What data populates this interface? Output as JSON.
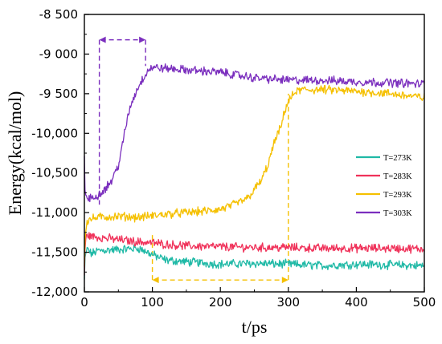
{
  "chart_data": {
    "type": "line",
    "title": "",
    "xlabel": "t/ps",
    "ylabel": "Energy(kcal/mol)",
    "xlim": [
      0,
      500
    ],
    "ylim": [
      -12000,
      -8500
    ],
    "xticks": [
      0,
      100,
      200,
      300,
      400,
      500
    ],
    "xtick_labels": [
      "0",
      "100",
      "200",
      "300",
      "400",
      "500"
    ],
    "yticks": [
      -12000,
      -11500,
      -11000,
      -10500,
      -10000,
      -9500,
      -9000,
      -8500
    ],
    "ytick_labels": [
      "-12,000",
      "-11,500",
      "-11,000",
      "-10,500",
      "-10,000",
      "-9 500",
      "-9 000",
      "-8 500"
    ],
    "grid": false,
    "legend_position": "right-middle",
    "series": [
      {
        "name": "T=273K",
        "color": "#1fb9a6",
        "x": [
          0,
          1,
          3,
          5,
          10,
          20,
          40,
          60,
          80,
          100,
          120,
          150,
          200,
          250,
          300,
          350,
          400,
          450,
          500
        ],
        "values": [
          -11850,
          -11600,
          -11480,
          -11460,
          -11520,
          -11480,
          -11470,
          -11460,
          -11450,
          -11530,
          -11600,
          -11620,
          -11650,
          -11640,
          -11650,
          -11670,
          -11650,
          -11660,
          -11670
        ]
      },
      {
        "name": "T=283K",
        "color": "#f0325a",
        "x": [
          0,
          1,
          3,
          5,
          10,
          20,
          40,
          60,
          80,
          100,
          120,
          150,
          200,
          250,
          300,
          350,
          400,
          450,
          500
        ],
        "values": [
          -11800,
          -11450,
          -11300,
          -11280,
          -11300,
          -11310,
          -11330,
          -11350,
          -11370,
          -11380,
          -11400,
          -11420,
          -11430,
          -11440,
          -11440,
          -11450,
          -11450,
          -11450,
          -11460
        ]
      },
      {
        "name": "T=293K",
        "color": "#f5c000",
        "x": [
          0,
          1,
          3,
          5,
          10,
          20,
          40,
          60,
          80,
          100,
          120,
          150,
          180,
          200,
          220,
          240,
          260,
          270,
          280,
          290,
          295,
          300,
          310,
          320,
          350,
          400,
          450,
          500
        ],
        "values": [
          -11700,
          -11300,
          -11150,
          -11100,
          -11080,
          -11060,
          -11050,
          -11050,
          -11060,
          -11040,
          -11020,
          -11000,
          -10980,
          -10960,
          -10900,
          -10820,
          -10600,
          -10400,
          -10100,
          -9900,
          -9700,
          -9600,
          -9480,
          -9450,
          -9450,
          -9470,
          -9500,
          -9550
        ]
      },
      {
        "name": "T=303K",
        "color": "#7b2fbe",
        "x": [
          0,
          1,
          3,
          5,
          10,
          20,
          30,
          40,
          50,
          55,
          60,
          65,
          70,
          80,
          90,
          95,
          100,
          120,
          150,
          200,
          250,
          300,
          350,
          400,
          450,
          500
        ],
        "values": [
          -10300,
          -10700,
          -10800,
          -10830,
          -10820,
          -10780,
          -10700,
          -10600,
          -10400,
          -10200,
          -9950,
          -9750,
          -9600,
          -9400,
          -9250,
          -9190,
          -9170,
          -9180,
          -9200,
          -9230,
          -9300,
          -9330,
          -9330,
          -9350,
          -9360,
          -9380
        ]
      }
    ],
    "annotations": [
      {
        "type": "interval",
        "color": "#7b2fbe",
        "x1": 22,
        "x2": 90,
        "y": -8820,
        "y_bottom": -10900
      },
      {
        "type": "interval",
        "color": "#f5c000",
        "x1": 100,
        "x2": 300,
        "y": -11850,
        "y_top": -9500
      }
    ]
  }
}
